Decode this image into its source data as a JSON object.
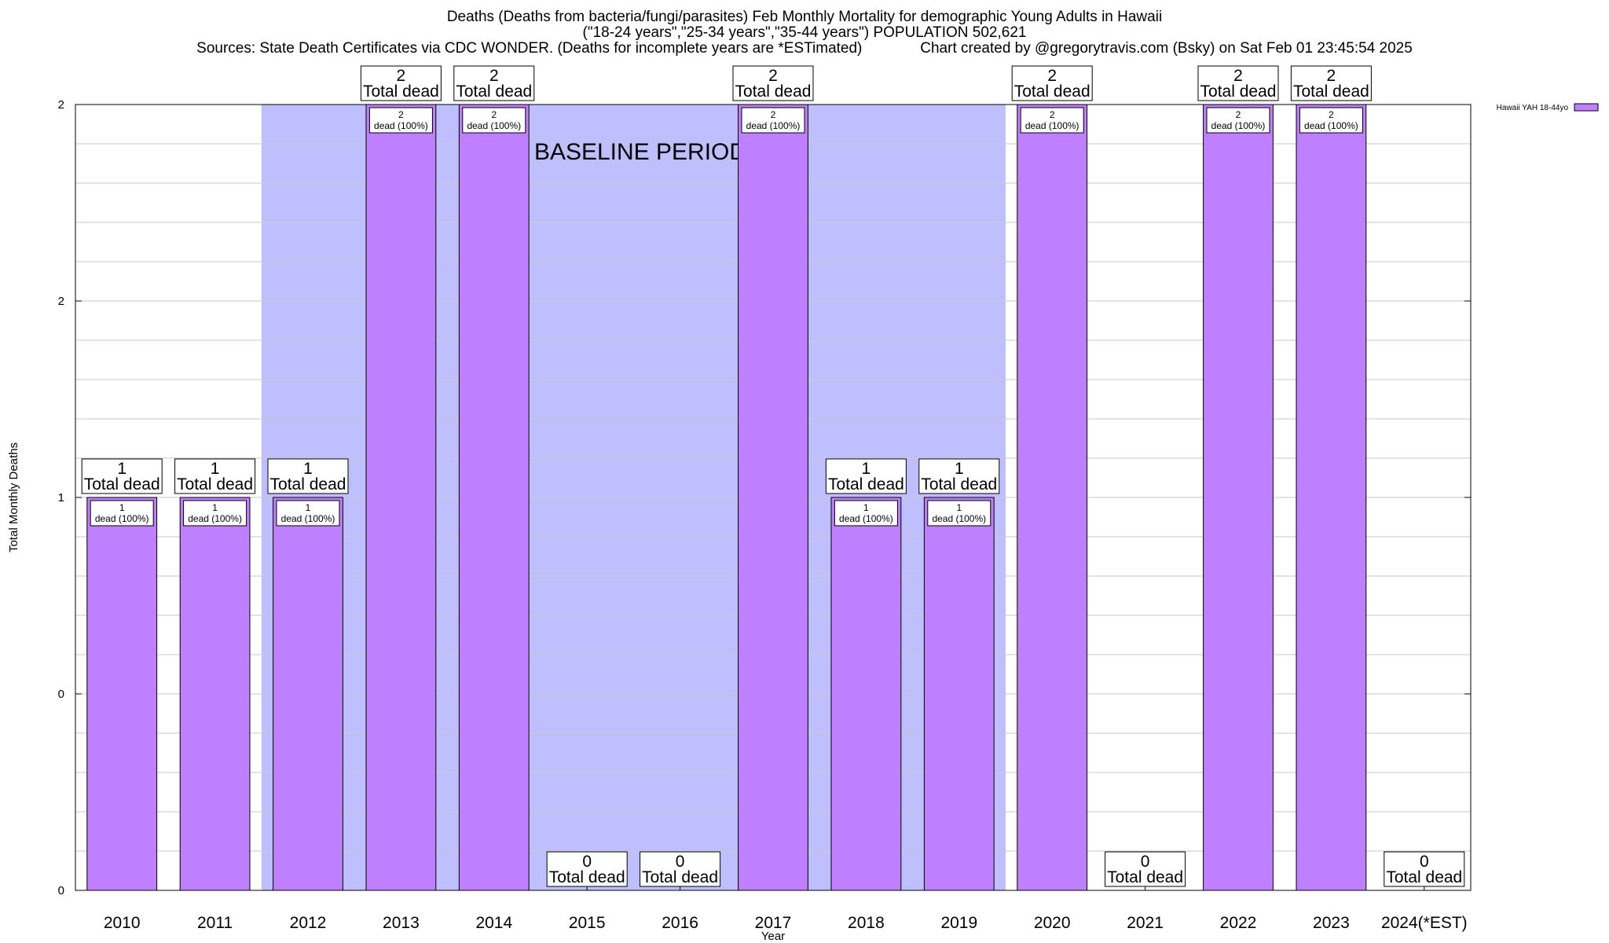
{
  "header": {
    "title_line1": "Deaths (Deaths from bacteria/fungi/parasites) Feb Monthly Mortality for demographic Young Adults in Hawaii",
    "title_line2": "(\"18-24 years\",\"25-34 years\",\"35-44 years\") POPULATION 502,621",
    "title_line3": "Sources: State Death Certificates via CDC WONDER. (Deaths for incomplete years are *ESTimated)              Chart created by @gregorytravis.com (Bsky) on Sat Feb 01 23:45:54 2025"
  },
  "chart_data": {
    "type": "bar",
    "title": "Deaths (Deaths from bacteria/fungi/parasites) Feb Monthly Mortality for demographic Young Adults in Hawaii",
    "xlabel": "Year",
    "ylabel": "Total Monthly Deaths",
    "categories": [
      "2010",
      "2011",
      "2012",
      "2013",
      "2014",
      "2015",
      "2016",
      "2017",
      "2018",
      "2019",
      "2020",
      "2021",
      "2022",
      "2023",
      "2024(*EST)"
    ],
    "series": [
      {
        "name": "Hawaii YAH 18-44yo",
        "values": [
          1,
          1,
          1,
          2,
          2,
          0,
          0,
          2,
          1,
          1,
          2,
          0,
          2,
          2,
          0
        ]
      }
    ],
    "y_tick_labels": [
      "0",
      "0",
      "1",
      "2",
      "2"
    ],
    "ylim": [
      0,
      2
    ],
    "grid": true,
    "legend": "top-right",
    "total_label_suffix": "Total dead",
    "inner_label_suffix": "dead (100%)",
    "baseline_label": "BASELINE PERIOD",
    "baseline_range": [
      "2012",
      "2019"
    ],
    "colors": {
      "bar": "#bf80ff",
      "baseline": "#bfbfff",
      "grid": "#c8c8c8"
    }
  }
}
